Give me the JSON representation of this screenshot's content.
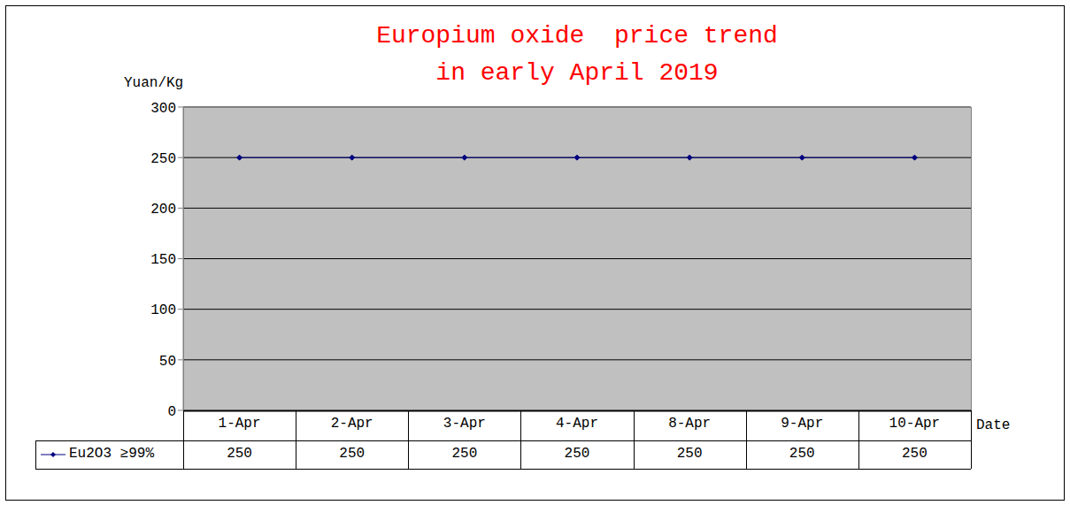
{
  "chart_data": {
    "type": "line",
    "title": "Europium oxide  price trend\nin early April 2019",
    "y_label": "Yuan/Kg",
    "x_label": "Date",
    "categories": [
      "1-Apr",
      "2-Apr",
      "3-Apr",
      "4-Apr",
      "8-Apr",
      "9-Apr",
      "10-Apr"
    ],
    "series": [
      {
        "name": "Eu2O3 ≥99%",
        "color": "#000080",
        "marker": "diamond",
        "values": [
          250,
          250,
          250,
          250,
          250,
          250,
          250
        ]
      }
    ],
    "ylim": [
      0,
      300
    ],
    "yticks": [
      0,
      50,
      100,
      150,
      200,
      250,
      300
    ],
    "grid": true
  }
}
